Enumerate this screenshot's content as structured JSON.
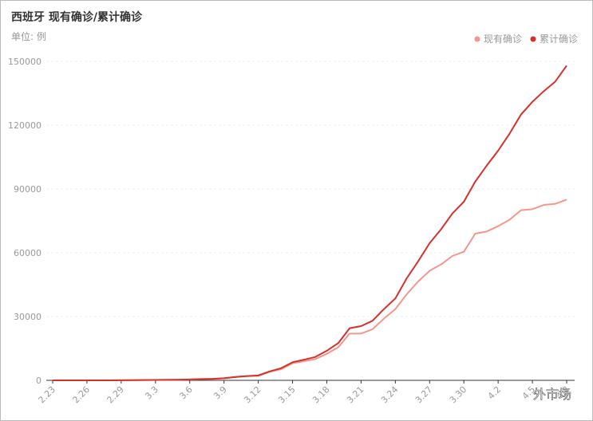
{
  "chart_data": {
    "type": "line",
    "title": "西班牙 现有确诊/累计确诊",
    "subtitle": "单位: 例",
    "watermark": "外市场",
    "categories": [
      "2.23",
      null,
      null,
      "2.26",
      null,
      null,
      "2.29",
      null,
      null,
      "3.3",
      null,
      null,
      "3.6",
      null,
      null,
      "3.9",
      null,
      null,
      "3.12",
      null,
      null,
      "3.15",
      null,
      null,
      "3.18",
      null,
      null,
      "3.21",
      null,
      null,
      "3.24",
      null,
      null,
      "3.27",
      null,
      null,
      "3.30",
      null,
      null,
      "4.2",
      null,
      null,
      "4.5",
      null,
      null,
      "4.8"
    ],
    "series": [
      {
        "name": "现有确诊",
        "color": "#f4968a",
        "values": [
          0,
          0,
          0,
          0,
          10,
          20,
          50,
          90,
          140,
          190,
          240,
          290,
          390,
          580,
          680,
          980,
          1550,
          1950,
          2100,
          4000,
          5200,
          8000,
          9000,
          10000,
          12500,
          15500,
          22000,
          22000,
          24000,
          29000,
          33500,
          40500,
          46500,
          51500,
          54500,
          58500,
          60500,
          69000,
          70000,
          72500,
          75500,
          80000,
          80500,
          82500,
          83000,
          85000
        ]
      },
      {
        "name": "累计确诊",
        "color": "#d6302b",
        "values": [
          0,
          0,
          0,
          0,
          10,
          20,
          50,
          100,
          150,
          200,
          250,
          300,
          400,
          600,
          700,
          1000,
          1600,
          2000,
          2300,
          4200,
          5700,
          8500,
          9700,
          11000,
          13900,
          17500,
          24500,
          25500,
          28000,
          33500,
          38500,
          48000,
          56000,
          64500,
          71000,
          78500,
          84000,
          93500,
          101000,
          108000,
          116000,
          125000,
          131000,
          136000,
          140500,
          148000
        ]
      }
    ],
    "ylim": [
      0,
      150000
    ],
    "yticks": [
      0,
      30000,
      60000,
      90000,
      120000,
      150000
    ],
    "grid": true,
    "legend": "top-right"
  }
}
